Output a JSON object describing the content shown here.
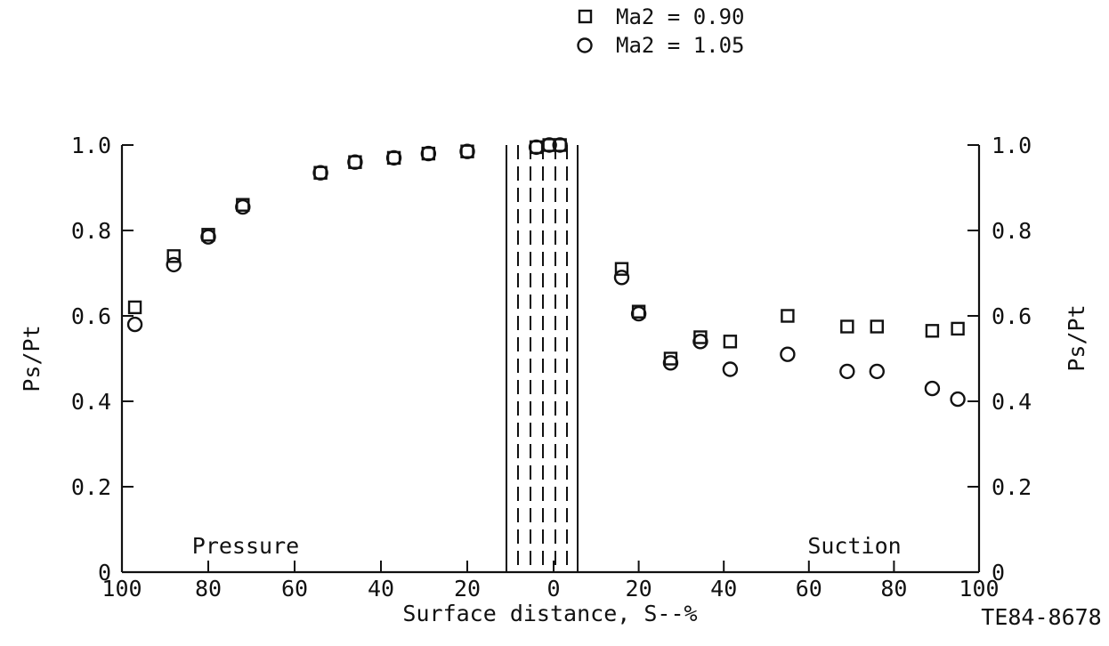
{
  "chart_data": {
    "type": "scatter",
    "title": "",
    "xlabel": "Surface distance, S--%",
    "ylabel": "Ps/Pt",
    "ylabel_right": "Ps/Pt",
    "figure_id": "TE84-8678",
    "ylim": [
      0,
      1.0
    ],
    "y_ticks": [
      "0",
      "0.2",
      "0.4",
      "0.6",
      "0.8",
      "1.0"
    ],
    "x_tick_labels": [
      "100",
      "80",
      "60",
      "40",
      "20",
      "0",
      "20",
      "40",
      "60",
      "80",
      "100"
    ],
    "region_labels": {
      "pressure": "Pressure",
      "suction": "Suction"
    },
    "legend": [
      {
        "marker": "square",
        "label": "Ma2 = 0.90"
      },
      {
        "marker": "circle",
        "label": "Ma2 = 1.05"
      }
    ],
    "series": [
      {
        "name": "Ma2 = 0.90",
        "marker": "square",
        "pressure_side": [
          {
            "s": 97,
            "p": 0.62
          },
          {
            "s": 88,
            "p": 0.74
          },
          {
            "s": 80,
            "p": 0.79
          },
          {
            "s": 72,
            "p": 0.86
          },
          {
            "s": 54,
            "p": 0.935
          },
          {
            "s": 46,
            "p": 0.96
          },
          {
            "s": 37,
            "p": 0.97
          },
          {
            "s": 29,
            "p": 0.98
          },
          {
            "s": 20,
            "p": 0.985
          },
          {
            "s": 4,
            "p": 0.995
          },
          {
            "s": 1,
            "p": 1.0
          }
        ],
        "suction_side": [
          {
            "s": 1.5,
            "p": 1.0
          },
          {
            "s": 16,
            "p": 0.71
          },
          {
            "s": 20,
            "p": 0.61
          },
          {
            "s": 27.5,
            "p": 0.5
          },
          {
            "s": 34.5,
            "p": 0.55
          },
          {
            "s": 41.5,
            "p": 0.54
          },
          {
            "s": 55,
            "p": 0.6
          },
          {
            "s": 69,
            "p": 0.575
          },
          {
            "s": 76,
            "p": 0.575
          },
          {
            "s": 89,
            "p": 0.565
          },
          {
            "s": 95,
            "p": 0.57
          }
        ]
      },
      {
        "name": "Ma2 = 1.05",
        "marker": "circle",
        "pressure_side": [
          {
            "s": 97,
            "p": 0.58
          },
          {
            "s": 88,
            "p": 0.72
          },
          {
            "s": 80,
            "p": 0.785
          },
          {
            "s": 72,
            "p": 0.855
          },
          {
            "s": 54,
            "p": 0.935
          },
          {
            "s": 46,
            "p": 0.96
          },
          {
            "s": 37,
            "p": 0.97
          },
          {
            "s": 29,
            "p": 0.98
          },
          {
            "s": 20,
            "p": 0.985
          },
          {
            "s": 4,
            "p": 0.995
          },
          {
            "s": 1,
            "p": 1.0
          }
        ],
        "suction_side": [
          {
            "s": 1.5,
            "p": 1.0
          },
          {
            "s": 16,
            "p": 0.69
          },
          {
            "s": 20,
            "p": 0.605
          },
          {
            "s": 27.5,
            "p": 0.49
          },
          {
            "s": 34.5,
            "p": 0.54
          },
          {
            "s": 41.5,
            "p": 0.475
          },
          {
            "s": 55,
            "p": 0.51
          },
          {
            "s": 69,
            "p": 0.47
          },
          {
            "s": 76,
            "p": 0.47
          },
          {
            "s": 89,
            "p": 0.43
          },
          {
            "s": 95,
            "p": 0.405
          }
        ]
      }
    ]
  }
}
